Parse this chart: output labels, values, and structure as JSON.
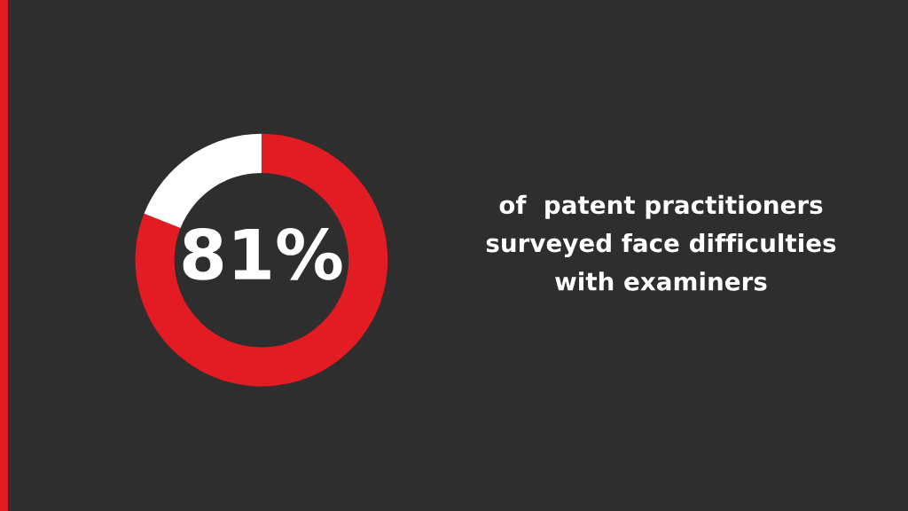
{
  "chart_data": {
    "type": "donut",
    "categories": [
      null,
      null
    ],
    "values": [
      81,
      19
    ],
    "colors": [
      "#e31b23",
      "#ffffff"
    ],
    "value_labels": [
      "81%",
      null
    ],
    "annotations": [
      "of  patent practitioners",
      "surveyed face difficulties",
      "with examiners"
    ]
  }
}
